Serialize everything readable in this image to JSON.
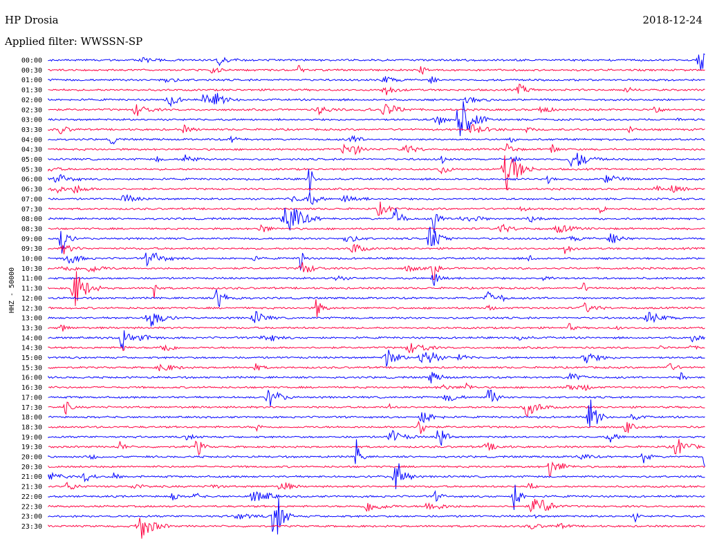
{
  "header": {
    "station": "HP Drosia",
    "date": "2018-12-24",
    "filter": "Applied filter: WWSSN-SP"
  },
  "chart_data": {
    "type": "line",
    "title": "HP Drosia",
    "ylabel": "HHZ - 50000",
    "row_labels": [
      "00:00",
      "00:30",
      "01:00",
      "01:30",
      "02:00",
      "02:30",
      "03:00",
      "03:30",
      "04:00",
      "04:30",
      "05:00",
      "05:30",
      "06:00",
      "06:30",
      "07:00",
      "07:30",
      "08:00",
      "08:30",
      "09:00",
      "09:30",
      "10:00",
      "10:30",
      "11:00",
      "11:30",
      "12:00",
      "12:30",
      "13:00",
      "13:30",
      "14:00",
      "14:30",
      "15:00",
      "15:30",
      "16:00",
      "16:30",
      "17:00",
      "17:30",
      "18:00",
      "18:30",
      "19:00",
      "19:30",
      "20:00",
      "20:30",
      "21:00",
      "21:30",
      "22:00",
      "22:30",
      "23:00",
      "23:30"
    ],
    "series_colors": [
      "#0000ff",
      "#ff0040"
    ],
    "color_pattern": "alternating rows starting with blue",
    "grid": false
  }
}
